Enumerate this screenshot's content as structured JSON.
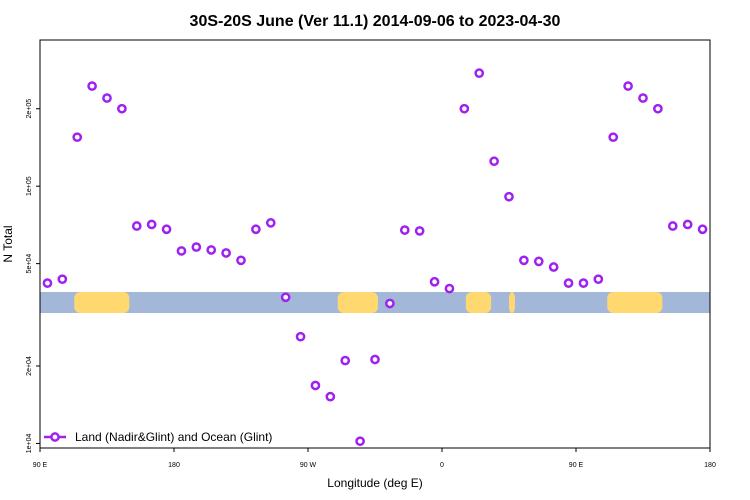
{
  "chart_data": {
    "type": "scatter",
    "title": "30S-20S June (Ver 11.1)   2014-09-06 to 2023-04-30",
    "xlabel": "Longitude (deg E)",
    "ylabel": "N Total",
    "x_ticks": [
      {
        "value": 90,
        "label": "90 E"
      },
      {
        "value": 180,
        "label": "180"
      },
      {
        "value": 270,
        "label": "90 W"
      },
      {
        "value": 360,
        "label": "0"
      },
      {
        "value": 450,
        "label": "90 E"
      },
      {
        "value": 540,
        "label": "180"
      }
    ],
    "xlim": [
      90,
      540
    ],
    "y_scale": "log",
    "y_ticks": [
      {
        "value": 10000,
        "label": "1e+04"
      },
      {
        "value": 20000,
        "label": "2e+04"
      },
      {
        "value": 50000,
        "label": "5e+04"
      },
      {
        "value": 100000,
        "label": "1e+05"
      },
      {
        "value": 200000,
        "label": "2e+05"
      }
    ],
    "ylim": [
      9600,
      370000
    ],
    "series": [
      {
        "name": "Land (Nadir&Glint) and Ocean (Glint)",
        "color": "#a020f0",
        "x": [
          95,
          105,
          115,
          125,
          135,
          145,
          155,
          165,
          175,
          185,
          195,
          205,
          215,
          225,
          235,
          245,
          255,
          265,
          275,
          285,
          295,
          305,
          315,
          325,
          335,
          345,
          355,
          365,
          375,
          385,
          395,
          405,
          415,
          425,
          435,
          445,
          455,
          465,
          475,
          485,
          495,
          505,
          515,
          525,
          535
        ],
        "y": [
          42000,
          43500,
          155000,
          245000,
          220000,
          200000,
          70000,
          71000,
          68000,
          56000,
          58000,
          56500,
          55000,
          51500,
          68000,
          72000,
          37000,
          26000,
          16800,
          15200,
          21000,
          10200,
          21200,
          35000,
          67500,
          67000,
          42500,
          40000,
          200000,
          275000,
          125000,
          91000,
          51500,
          51000,
          48500,
          42000,
          42000,
          43500,
          155000,
          245000,
          220000,
          200000,
          70000,
          71000,
          68000
        ]
      }
    ],
    "legend": {
      "position": "bottom-left",
      "label": "Land (Nadir&Glint) and Ocean (Glint)"
    },
    "map_strip": {
      "ocean_color": "#a3b8d8",
      "land_color": "#ffd870",
      "land_regions_lon": [
        [
          113,
          150
        ],
        [
          290,
          317
        ],
        [
          376,
          393
        ],
        [
          405,
          409
        ],
        [
          471,
          508
        ]
      ]
    }
  }
}
